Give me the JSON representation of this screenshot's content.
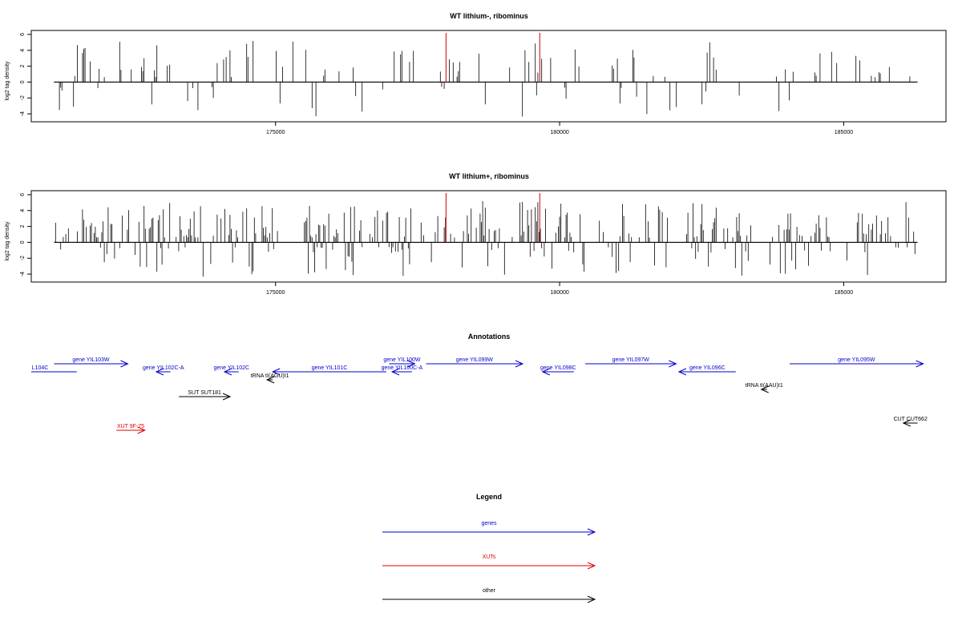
{
  "chart_data": [
    {
      "type": "bar",
      "title": "WT lithium-, ribominus",
      "xlabel": "",
      "ylabel": "log2 tag density",
      "ylim": [
        -5,
        6.5
      ],
      "yticks": [
        -4,
        -2,
        0,
        2,
        4,
        6
      ],
      "xlim": [
        170700,
        186800
      ],
      "xticks": [
        175000,
        180000,
        185000
      ],
      "highlight_positions": [
        178000,
        179650
      ],
      "highlight_color": "#cc0000",
      "bar_color": "#000000",
      "density": 0.35,
      "seed": 11
    },
    {
      "type": "bar",
      "title": "WT lithium+, ribominus",
      "xlabel": "",
      "ylabel": "log2 tag density",
      "ylim": [
        -5,
        6.5
      ],
      "yticks": [
        -4,
        -2,
        0,
        2,
        4,
        6
      ],
      "xlim": [
        170700,
        186800
      ],
      "xticks": [
        175000,
        180000,
        185000
      ],
      "highlight_positions": [
        178000,
        179650
      ],
      "highlight_color": "#cc0000",
      "bar_color": "#000000",
      "density": 0.85,
      "seed": 23
    }
  ],
  "annotations": {
    "title": "Annotations",
    "colors": {
      "genes": "#0000cc",
      "xuts": "#dd0000",
      "other": "#000000"
    },
    "features": [
      {
        "label": "L104C",
        "category": "genes",
        "x1": 170700,
        "x2": 171500,
        "strand": "none",
        "row": 0
      },
      {
        "label": "gene YIL103W",
        "category": "genes",
        "x1": 171100,
        "x2": 172400,
        "strand": "+",
        "row": 1
      },
      {
        "label": "gene YIL102C-A",
        "category": "genes",
        "x1": 172900,
        "x2": 173150,
        "strand": "-",
        "row": 0
      },
      {
        "label": "gene YIL102C",
        "category": "genes",
        "x1": 174100,
        "x2": 174350,
        "strand": "-",
        "row": 0
      },
      {
        "label": "gene YIL101C",
        "category": "genes",
        "x1": 174950,
        "x2": 176950,
        "strand": "-",
        "row": 0
      },
      {
        "label": "gene YIL100W",
        "category": "genes",
        "x1": 177000,
        "x2": 177450,
        "strand": "+",
        "row": 1
      },
      {
        "label": "gene YIL100C-A",
        "category": "genes",
        "x1": 177050,
        "x2": 177400,
        "strand": "-",
        "row": 0
      },
      {
        "label": "gene YIL099W",
        "category": "genes",
        "x1": 177650,
        "x2": 179350,
        "strand": "+",
        "row": 1
      },
      {
        "label": "gene YIL098C",
        "category": "genes",
        "x1": 179700,
        "x2": 180250,
        "strand": "-",
        "row": 0
      },
      {
        "label": "gene YIL097W",
        "category": "genes",
        "x1": 180450,
        "x2": 182050,
        "strand": "+",
        "row": 1
      },
      {
        "label": "gene YIL096C",
        "category": "genes",
        "x1": 182100,
        "x2": 183100,
        "strand": "-",
        "row": 0
      },
      {
        "label": "gene YIL095W",
        "category": "genes",
        "x1": 184050,
        "x2": 186400,
        "strand": "+",
        "row": 1
      },
      {
        "label": "tRNA tI(AGU)I1",
        "category": "other",
        "x1": 174850,
        "x2": 174950,
        "strand": "-",
        "row": 2
      },
      {
        "label": "tRNA tI(AAU)I1",
        "category": "other",
        "x1": 183550,
        "x2": 183650,
        "strand": "-",
        "row": 3
      },
      {
        "label": "SUT SUT181",
        "category": "other",
        "x1": 173300,
        "x2": 174200,
        "strand": "+",
        "row": 4
      },
      {
        "label": "CUT CUT662",
        "category": "other",
        "x1": 186050,
        "x2": 186300,
        "strand": "-",
        "row": 5
      },
      {
        "label": "XUT 9F-75",
        "category": "xuts",
        "x1": 172200,
        "x2": 172700,
        "strand": "+",
        "row": 6
      }
    ]
  },
  "legend": {
    "title": "Legend",
    "items": [
      {
        "label": "genes",
        "color": "#0000cc"
      },
      {
        "label": "XUTs",
        "color": "#dd0000"
      },
      {
        "label": "other",
        "color": "#000000"
      }
    ]
  }
}
